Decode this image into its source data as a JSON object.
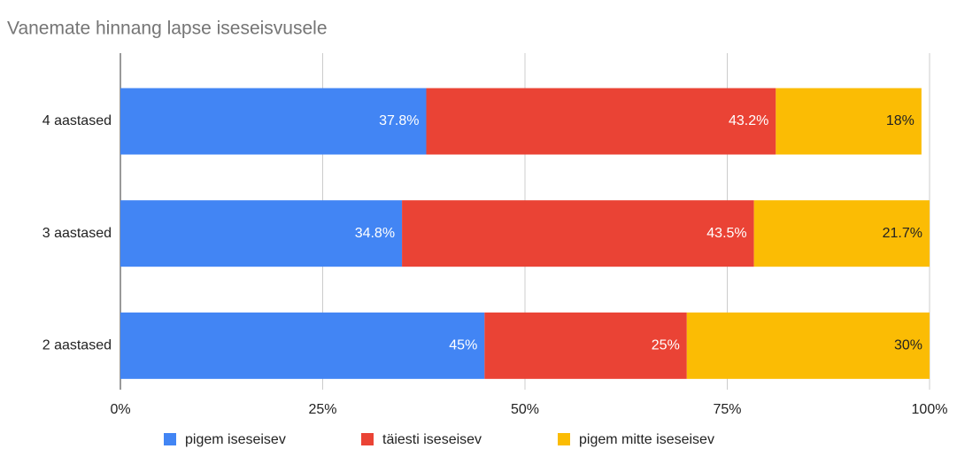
{
  "chart_data": {
    "type": "bar",
    "orientation": "horizontal",
    "stacked": true,
    "title": "Vanemate hinnang lapse iseseisvusele",
    "categories": [
      "4 aastased",
      "3 aastased",
      "2 aastased"
    ],
    "series": [
      {
        "name": "pigem iseseisev",
        "color": "#4285f4",
        "values": [
          37.8,
          34.8,
          45
        ],
        "value_labels": [
          "37.8%",
          "34.8%",
          "45%"
        ]
      },
      {
        "name": "täiesti iseseisev",
        "color": "#ea4335",
        "values": [
          43.2,
          43.5,
          25
        ],
        "value_labels": [
          "43.2%",
          "43.5%",
          "25%"
        ]
      },
      {
        "name": "pigem mitte iseseisev",
        "color": "#fbbc04",
        "values": [
          18,
          21.7,
          30
        ],
        "value_labels": [
          "18%",
          "21.7%",
          "30%"
        ]
      }
    ],
    "xlim": [
      0,
      100
    ],
    "xticks": [
      {
        "value": 0,
        "label": "0%"
      },
      {
        "value": 25,
        "label": "25%"
      },
      {
        "value": 50,
        "label": "50%"
      },
      {
        "value": 75,
        "label": "75%"
      },
      {
        "value": 100,
        "label": "100%"
      }
    ],
    "grid": true,
    "legend": "bottom"
  }
}
